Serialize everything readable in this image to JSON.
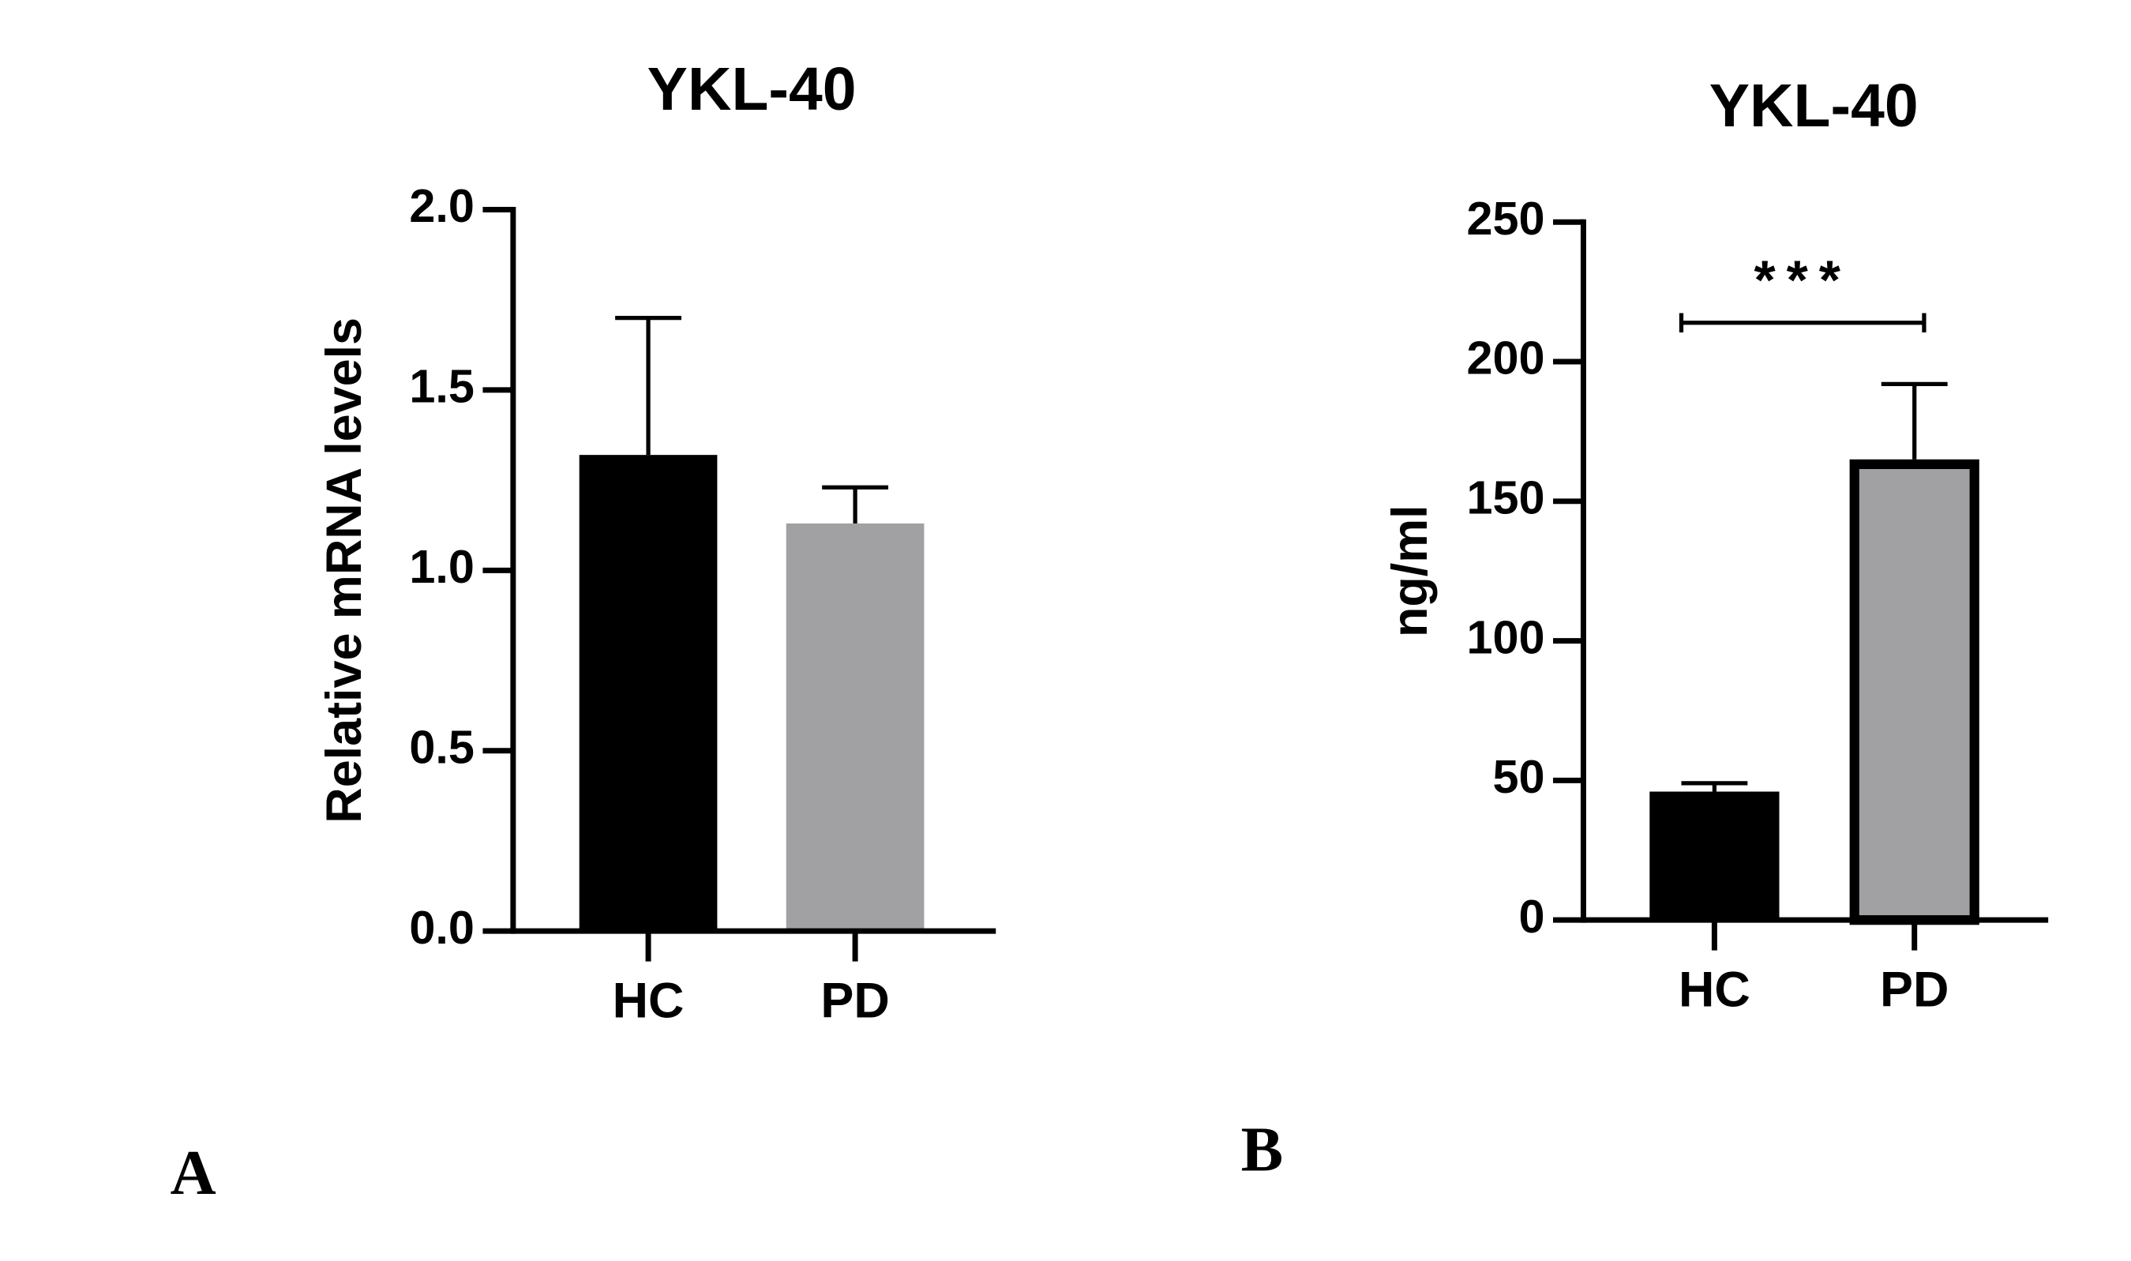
{
  "chart_data": [
    {
      "type": "bar",
      "label": "A",
      "title": "YKL-40",
      "ylabel": "Relative mRNA levels",
      "categories": [
        "HC",
        "PD"
      ],
      "values": [
        1.32,
        1.13
      ],
      "errors": [
        0.38,
        0.1
      ],
      "colors": [
        "#000000",
        "#a1a1a4"
      ],
      "edgecolors": [
        "#000000",
        "#a1a1a4"
      ],
      "ylim": [
        0,
        2
      ],
      "yticks": [
        {
          "value": 0,
          "label": "0.0"
        },
        0.5,
        {
          "value": 1,
          "label": "1.0"
        },
        1.5,
        {
          "value": 2,
          "label": "2.0"
        }
      ]
    },
    {
      "type": "bar",
      "label": "B",
      "title": "YKL-40",
      "ylabel": "ng/ml",
      "categories": [
        "HC",
        "PD"
      ],
      "values": [
        46,
        165
      ],
      "errors": [
        3,
        27
      ],
      "colors": [
        "#000000",
        "#a1a1a4"
      ],
      "edgecolors": [
        "#000000",
        "#000000"
      ],
      "ylim": [
        0,
        250
      ],
      "yticks": [
        0,
        50,
        100,
        150,
        200,
        250
      ],
      "significance": "***"
    }
  ]
}
